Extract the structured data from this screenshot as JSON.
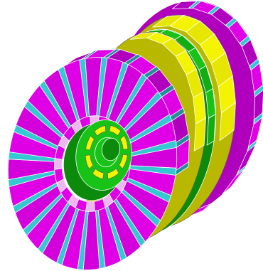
{
  "figure": {
    "description": "",
    "palette": {
      "magenta": "#e000e6",
      "magenta_dark": "#8a0096",
      "magenta_mid": "#b000be",
      "cyan": "#34c8d2",
      "cyan_dark": "#1f8f98",
      "yellow": "#f4f400",
      "yellow_dark": "#b8b800",
      "green": "#16c316",
      "green_dark": "#0c8a0c",
      "background": "#ffffff"
    },
    "components": [
      {
        "name": "front-disc",
        "segments": 24,
        "inner_teeth": 12
      },
      {
        "name": "yellow-ring",
        "segments": 24
      },
      {
        "name": "green-ring",
        "segments": 24
      },
      {
        "name": "rear-disc",
        "segments": 24
      }
    ]
  }
}
